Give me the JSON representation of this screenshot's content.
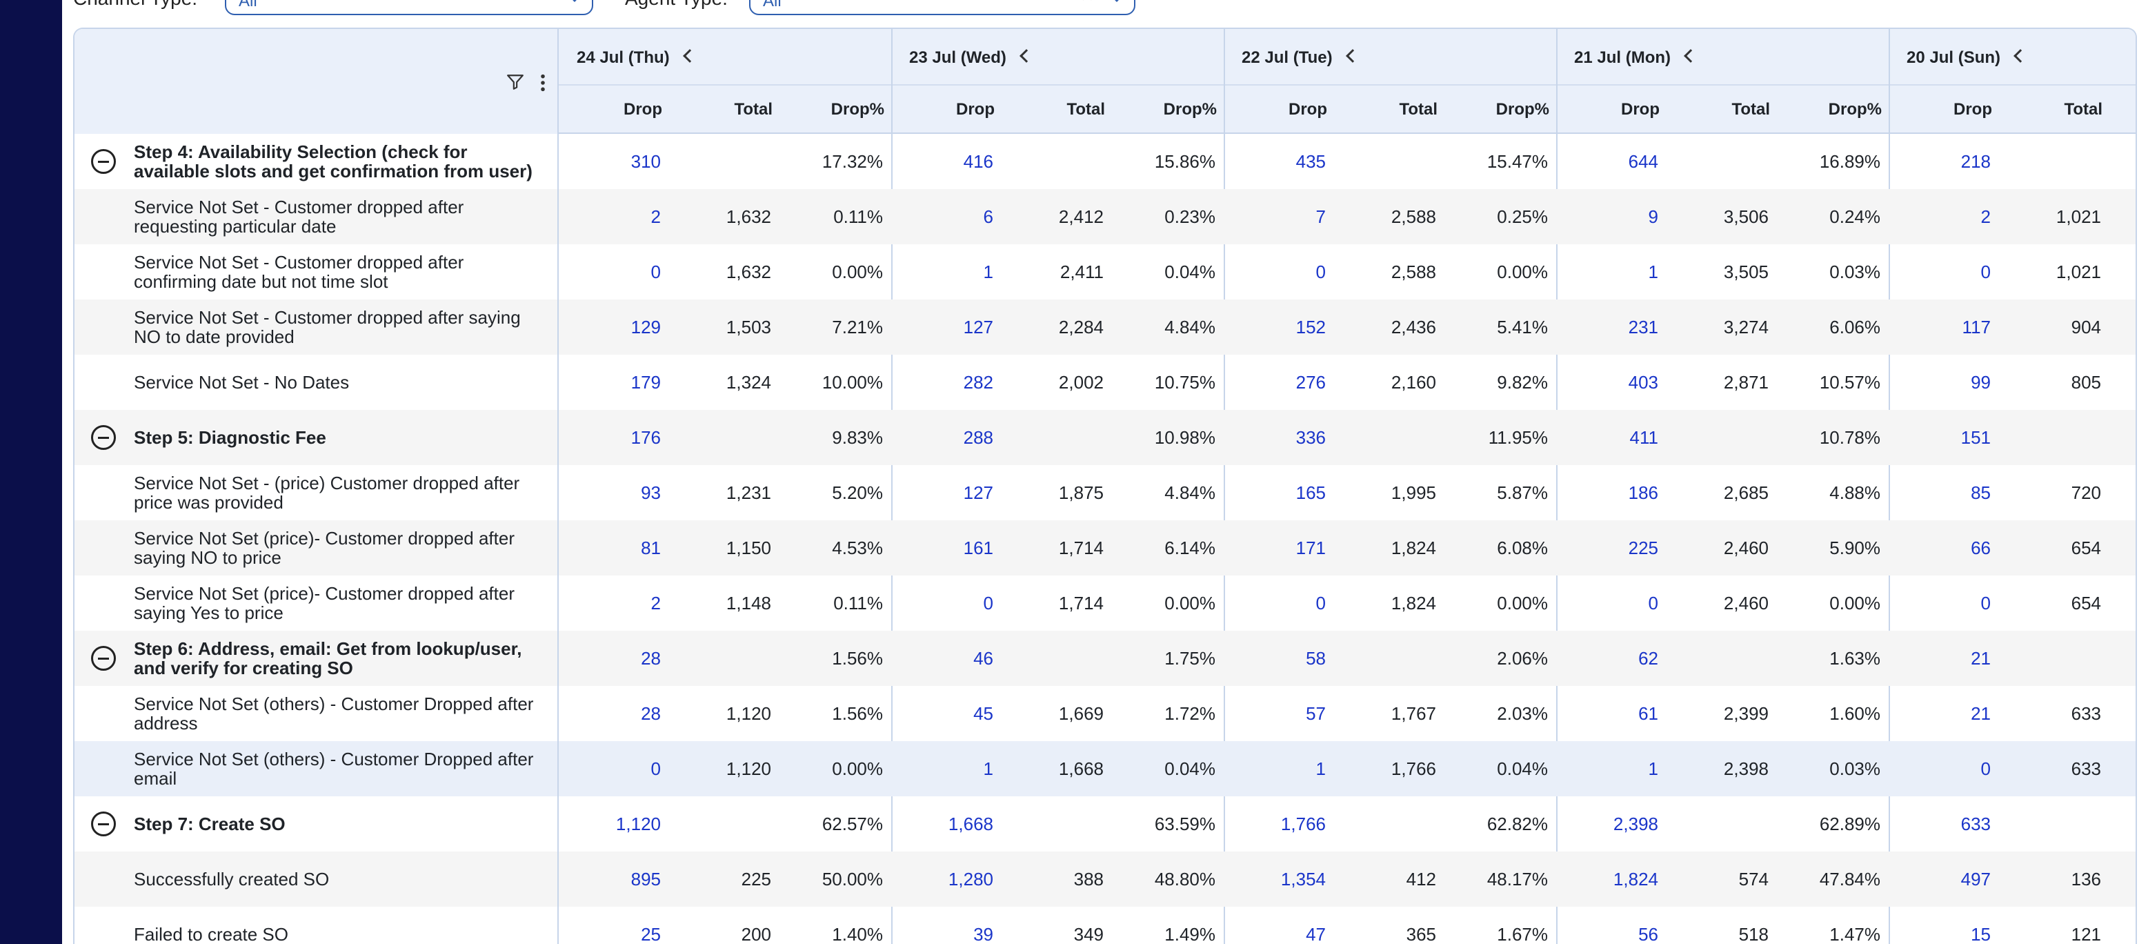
{
  "filters": {
    "channel_type_label": "Channel Type:",
    "channel_type_value": "All",
    "agent_type_label": "Agent Type:",
    "agent_type_value": "All"
  },
  "subheaders": {
    "drop": "Drop",
    "total": "Total",
    "drop_pct": "Drop%"
  },
  "dates": [
    {
      "label": "24 Jul (Thu)"
    },
    {
      "label": "23 Jul (Wed)"
    },
    {
      "label": "22 Jul (Tue)"
    },
    {
      "label": "21 Jul (Mon)"
    },
    {
      "label": "20 Jul (Sun)"
    }
  ],
  "rows": [
    {
      "type": "step",
      "label": "Step 4: Availability Selection (check for available slots and get confirmation from user)",
      "cells": [
        [
          "310",
          "",
          "17.32%"
        ],
        [
          "416",
          "",
          "15.86%"
        ],
        [
          "435",
          "",
          "15.47%"
        ],
        [
          "644",
          "",
          "16.89%"
        ],
        [
          "218",
          "",
          ""
        ]
      ]
    },
    {
      "type": "sub",
      "label": "Service Not Set - Customer dropped after requesting particular date",
      "cells": [
        [
          "2",
          "1,632",
          "0.11%"
        ],
        [
          "6",
          "2,412",
          "0.23%"
        ],
        [
          "7",
          "2,588",
          "0.25%"
        ],
        [
          "9",
          "3,506",
          "0.24%"
        ],
        [
          "2",
          "1,021",
          ""
        ]
      ]
    },
    {
      "type": "sub",
      "label": "Service Not Set - Customer dropped after confirming date but not time slot",
      "cells": [
        [
          "0",
          "1,632",
          "0.00%"
        ],
        [
          "1",
          "2,411",
          "0.04%"
        ],
        [
          "0",
          "2,588",
          "0.00%"
        ],
        [
          "1",
          "3,505",
          "0.03%"
        ],
        [
          "0",
          "1,021",
          ""
        ]
      ]
    },
    {
      "type": "sub",
      "label": "Service Not Set - Customer dropped after saying NO to date provided",
      "cells": [
        [
          "129",
          "1,503",
          "7.21%"
        ],
        [
          "127",
          "2,284",
          "4.84%"
        ],
        [
          "152",
          "2,436",
          "5.41%"
        ],
        [
          "231",
          "3,274",
          "6.06%"
        ],
        [
          "117",
          "904",
          ""
        ]
      ]
    },
    {
      "type": "sub",
      "label": "Service Not Set - No Dates",
      "cells": [
        [
          "179",
          "1,324",
          "10.00%"
        ],
        [
          "282",
          "2,002",
          "10.75%"
        ],
        [
          "276",
          "2,160",
          "9.82%"
        ],
        [
          "403",
          "2,871",
          "10.57%"
        ],
        [
          "99",
          "805",
          ""
        ]
      ]
    },
    {
      "type": "step",
      "label": "Step 5: Diagnostic Fee",
      "cells": [
        [
          "176",
          "",
          "9.83%"
        ],
        [
          "288",
          "",
          "10.98%"
        ],
        [
          "336",
          "",
          "11.95%"
        ],
        [
          "411",
          "",
          "10.78%"
        ],
        [
          "151",
          "",
          ""
        ]
      ]
    },
    {
      "type": "sub",
      "label": "Service Not Set - (price) Customer dropped after price was provided",
      "cells": [
        [
          "93",
          "1,231",
          "5.20%"
        ],
        [
          "127",
          "1,875",
          "4.84%"
        ],
        [
          "165",
          "1,995",
          "5.87%"
        ],
        [
          "186",
          "2,685",
          "4.88%"
        ],
        [
          "85",
          "720",
          ""
        ]
      ]
    },
    {
      "type": "sub",
      "label": "Service Not Set (price)- Customer dropped after saying NO to price",
      "cells": [
        [
          "81",
          "1,150",
          "4.53%"
        ],
        [
          "161",
          "1,714",
          "6.14%"
        ],
        [
          "171",
          "1,824",
          "6.08%"
        ],
        [
          "225",
          "2,460",
          "5.90%"
        ],
        [
          "66",
          "654",
          ""
        ]
      ]
    },
    {
      "type": "sub",
      "label": "Service Not Set (price)- Customer dropped after saying Yes to price",
      "cells": [
        [
          "2",
          "1,148",
          "0.11%"
        ],
        [
          "0",
          "1,714",
          "0.00%"
        ],
        [
          "0",
          "1,824",
          "0.00%"
        ],
        [
          "0",
          "2,460",
          "0.00%"
        ],
        [
          "0",
          "654",
          ""
        ]
      ]
    },
    {
      "type": "step",
      "label": "Step 6: Address, email: Get from lookup/user, and verify for creating SO",
      "cells": [
        [
          "28",
          "",
          "1.56%"
        ],
        [
          "46",
          "",
          "1.75%"
        ],
        [
          "58",
          "",
          "2.06%"
        ],
        [
          "62",
          "",
          "1.63%"
        ],
        [
          "21",
          "",
          ""
        ]
      ]
    },
    {
      "type": "sub",
      "label": "Service Not Set (others) - Customer Dropped after address",
      "cells": [
        [
          "28",
          "1,120",
          "1.56%"
        ],
        [
          "45",
          "1,669",
          "1.72%"
        ],
        [
          "57",
          "1,767",
          "2.03%"
        ],
        [
          "61",
          "2,399",
          "1.60%"
        ],
        [
          "21",
          "633",
          ""
        ]
      ]
    },
    {
      "type": "sub",
      "label": "Service Not Set (others) - Customer Dropped after email",
      "selected": true,
      "cells": [
        [
          "0",
          "1,120",
          "0.00%"
        ],
        [
          "1",
          "1,668",
          "0.04%"
        ],
        [
          "1",
          "1,766",
          "0.04%"
        ],
        [
          "1",
          "2,398",
          "0.03%"
        ],
        [
          "0",
          "633",
          ""
        ]
      ]
    },
    {
      "type": "step",
      "label": "Step 7: Create SO",
      "cells": [
        [
          "1,120",
          "",
          "62.57%"
        ],
        [
          "1,668",
          "",
          "63.59%"
        ],
        [
          "1,766",
          "",
          "62.82%"
        ],
        [
          "2,398",
          "",
          "62.89%"
        ],
        [
          "633",
          "",
          ""
        ]
      ]
    },
    {
      "type": "sub",
      "label": "Successfully created SO",
      "cells": [
        [
          "895",
          "225",
          "50.00%"
        ],
        [
          "1,280",
          "388",
          "48.80%"
        ],
        [
          "1,354",
          "412",
          "48.17%"
        ],
        [
          "1,824",
          "574",
          "47.84%"
        ],
        [
          "497",
          "136",
          ""
        ]
      ]
    },
    {
      "type": "sub",
      "label": "Failed to create SO",
      "cells": [
        [
          "25",
          "200",
          "1.40%"
        ],
        [
          "39",
          "349",
          "1.49%"
        ],
        [
          "47",
          "365",
          "1.67%"
        ],
        [
          "56",
          "518",
          "1.47%"
        ],
        [
          "15",
          "121",
          ""
        ]
      ]
    }
  ],
  "colors": {
    "drop_link": "#1a35c9",
    "rail": "#0b0f4a",
    "header_bg": "#eaf0fa",
    "border": "#c7d5ea"
  }
}
